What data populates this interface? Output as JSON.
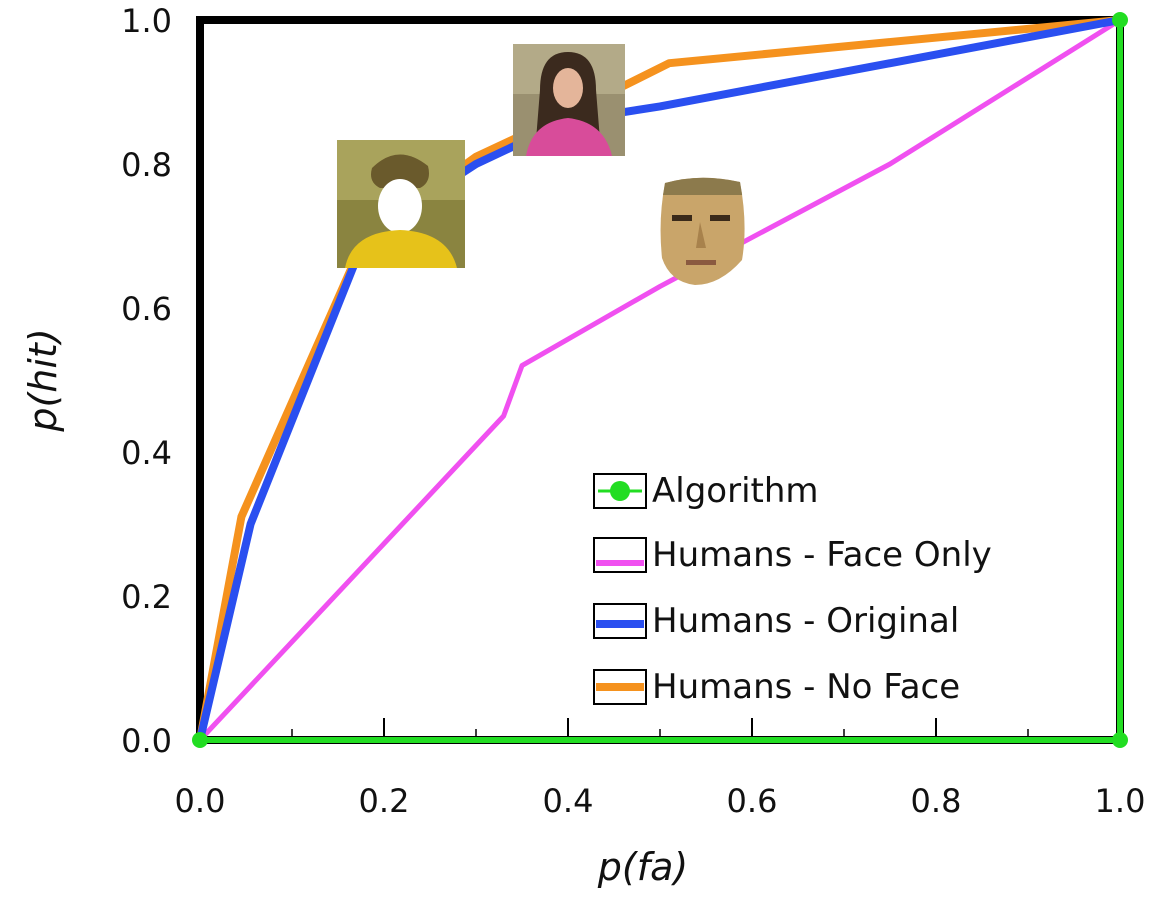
{
  "chart_data": {
    "type": "line",
    "title": "",
    "xlabel": "p(fa)",
    "ylabel": "p(hit)",
    "xlim": [
      0.0,
      1.0
    ],
    "ylim": [
      0.0,
      1.0
    ],
    "x_ticks": [
      "0.0",
      "0.2",
      "0.4",
      "0.6",
      "0.8",
      "1.0"
    ],
    "y_ticks": [
      "0.0",
      "0.2",
      "0.4",
      "0.6",
      "0.8",
      "1.0"
    ],
    "grid": false,
    "legend_position": "bottom-right",
    "series": [
      {
        "name": "Algorithm",
        "color": "#22dd22",
        "marker": "circle",
        "x": [
          0.0,
          1.0,
          1.0
        ],
        "y": [
          0.0,
          0.0,
          1.0
        ]
      },
      {
        "name": "Humans - Face Only",
        "color": "#f050f0",
        "marker": "none",
        "x": [
          0.0,
          0.33,
          0.35,
          0.5,
          0.75,
          1.0
        ],
        "y": [
          0.0,
          0.45,
          0.52,
          0.63,
          0.8,
          1.0
        ]
      },
      {
        "name": "Humans - Original",
        "color": "#2a4ff0",
        "marker": "none",
        "x": [
          0.0,
          0.055,
          0.18,
          0.3,
          0.4,
          0.5,
          1.0
        ],
        "y": [
          0.0,
          0.3,
          0.7,
          0.8,
          0.86,
          0.88,
          1.0
        ]
      },
      {
        "name": "Humans - No Face",
        "color": "#f5921e",
        "marker": "none",
        "x": [
          0.0,
          0.045,
          0.18,
          0.3,
          0.4,
          0.51,
          1.0
        ],
        "y": [
          0.0,
          0.31,
          0.7,
          0.81,
          0.87,
          0.94,
          1.0
        ]
      }
    ],
    "images": [
      {
        "name": "no-face-thumbnail",
        "x": 0.2,
        "y": 0.77
      },
      {
        "name": "original-thumbnail",
        "x": 0.4,
        "y": 0.92
      },
      {
        "name": "face-only-thumbnail",
        "x": 0.55,
        "y": 0.72
      }
    ]
  }
}
